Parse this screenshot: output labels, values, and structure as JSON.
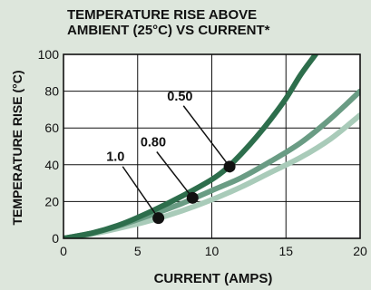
{
  "chart_data": {
    "type": "line",
    "title_line1": "TEMPERATURE RISE ABOVE",
    "title_line2": "AMBIENT (25°C) VS CURRENT*",
    "xlabel": "CURRENT (AMPS)",
    "ylabel": "TEMPERATURE RISE (°C)",
    "xlim": [
      0,
      20
    ],
    "ylim": [
      0,
      100
    ],
    "x_ticks": [
      0,
      5,
      10,
      15,
      20
    ],
    "y_ticks": [
      0,
      20,
      40,
      60,
      80,
      100
    ],
    "x_tick_labels": [
      "0",
      "5",
      "10",
      "15",
      "20"
    ],
    "y_tick_labels": [
      "0",
      "20",
      "40",
      "60",
      "80",
      "100"
    ],
    "grid": true,
    "series": [
      {
        "name": "0.50",
        "color": "#2d6e4c",
        "points": [
          [
            0,
            0
          ],
          [
            2,
            3
          ],
          [
            4,
            8
          ],
          [
            6,
            15
          ],
          [
            8,
            23
          ],
          [
            10,
            32
          ],
          [
            11,
            38
          ],
          [
            12,
            46
          ],
          [
            13,
            55
          ],
          [
            14,
            65
          ],
          [
            15,
            76
          ],
          [
            16,
            89
          ],
          [
            17,
            100
          ]
        ],
        "marker": [
          11.2,
          39
        ]
      },
      {
        "name": "0.80",
        "color": "#6a9c84",
        "points": [
          [
            0,
            0
          ],
          [
            2,
            3
          ],
          [
            4,
            7.5
          ],
          [
            6,
            13
          ],
          [
            8,
            19
          ],
          [
            10,
            26
          ],
          [
            12,
            33
          ],
          [
            14,
            42
          ],
          [
            16,
            52
          ],
          [
            18,
            65
          ],
          [
            20,
            80
          ]
        ],
        "marker": [
          8.7,
          22
        ]
      },
      {
        "name": "1.0",
        "color": "#a9cbb9",
        "points": [
          [
            0,
            0
          ],
          [
            2,
            2.5
          ],
          [
            4,
            6
          ],
          [
            6,
            10
          ],
          [
            8,
            15
          ],
          [
            10,
            21
          ],
          [
            12,
            28
          ],
          [
            14,
            36
          ],
          [
            16,
            44
          ],
          [
            18,
            54
          ],
          [
            20,
            67
          ]
        ],
        "marker": [
          6.4,
          11
        ]
      }
    ],
    "callouts": [
      {
        "text": "0.50",
        "series": "0.50",
        "label_x": 7.6,
        "label_y": 75
      },
      {
        "text": "0.80",
        "series": "0.80",
        "label_x": 5.8,
        "label_y": 50
      },
      {
        "text": "1.0",
        "series": "1.0",
        "label_x": 3.5,
        "label_y": 42
      }
    ]
  }
}
